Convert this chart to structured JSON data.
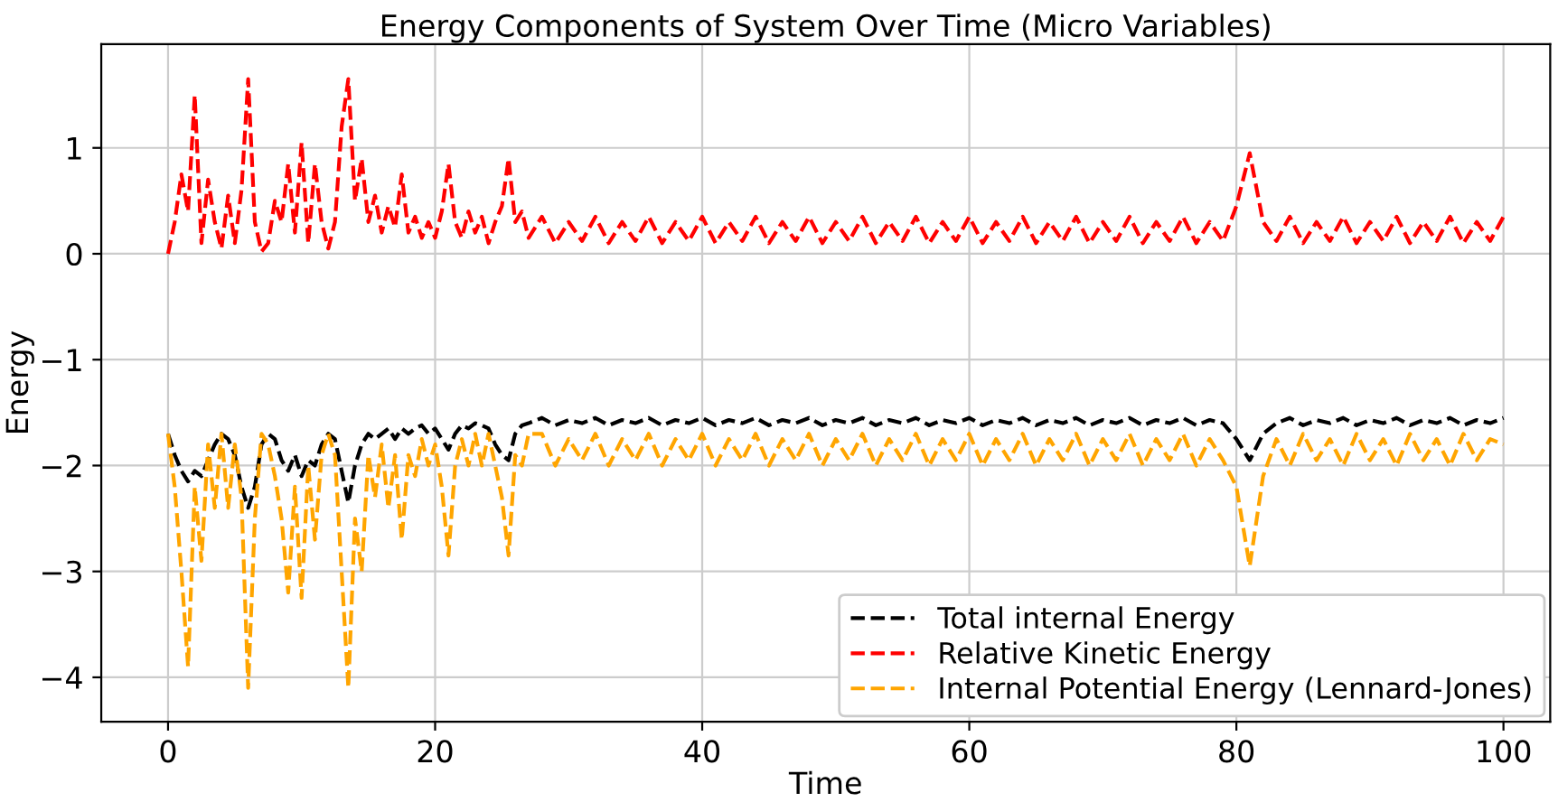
{
  "chart_data": {
    "type": "line",
    "title": "Energy Components of System Over Time (Micro Variables)",
    "xlabel": "Time",
    "ylabel": "Energy",
    "x": [
      0,
      0.5,
      1,
      1.5,
      2,
      2.5,
      3,
      3.5,
      4,
      4.5,
      5,
      5.5,
      6,
      6.5,
      7,
      7.5,
      8,
      8.5,
      9,
      9.5,
      10,
      10.5,
      11,
      11.5,
      12,
      12.5,
      13,
      13.5,
      14,
      14.5,
      15,
      15.5,
      16,
      16.5,
      17,
      17.5,
      18,
      18.5,
      19,
      19.5,
      20,
      20.5,
      21,
      21.5,
      22,
      22.5,
      23,
      23.5,
      24,
      24.5,
      25,
      25.5,
      26,
      26.5,
      27,
      28,
      29,
      30,
      31,
      32,
      33,
      34,
      35,
      36,
      37,
      38,
      39,
      40,
      41,
      42,
      43,
      44,
      45,
      46,
      47,
      48,
      49,
      50,
      51,
      52,
      53,
      54,
      55,
      56,
      57,
      58,
      59,
      60,
      61,
      62,
      63,
      64,
      65,
      66,
      67,
      68,
      69,
      70,
      71,
      72,
      73,
      74,
      75,
      76,
      77,
      78,
      79,
      80,
      81,
      82,
      83,
      84,
      85,
      86,
      87,
      88,
      89,
      90,
      91,
      92,
      93,
      94,
      95,
      96,
      97,
      98,
      99,
      100
    ],
    "series": [
      {
        "name": "Total internal Energy",
        "color": "#000000",
        "values": [
          -1.7,
          -1.9,
          -2.05,
          -2.15,
          -2.05,
          -2.1,
          -1.95,
          -1.8,
          -1.7,
          -1.75,
          -1.9,
          -2.2,
          -2.4,
          -2.2,
          -1.8,
          -1.7,
          -1.75,
          -1.95,
          -2.05,
          -1.9,
          -2.1,
          -1.95,
          -2.0,
          -1.8,
          -1.7,
          -1.75,
          -2.05,
          -2.35,
          -2.0,
          -1.8,
          -1.7,
          -1.75,
          -1.7,
          -1.65,
          -1.75,
          -1.65,
          -1.7,
          -1.65,
          -1.62,
          -1.7,
          -1.65,
          -1.75,
          -1.85,
          -1.7,
          -1.62,
          -1.65,
          -1.6,
          -1.62,
          -1.65,
          -1.8,
          -1.9,
          -1.95,
          -1.7,
          -1.62,
          -1.6,
          -1.55,
          -1.62,
          -1.57,
          -1.6,
          -1.55,
          -1.62,
          -1.57,
          -1.6,
          -1.55,
          -1.62,
          -1.57,
          -1.6,
          -1.55,
          -1.62,
          -1.57,
          -1.6,
          -1.55,
          -1.62,
          -1.57,
          -1.6,
          -1.55,
          -1.62,
          -1.57,
          -1.6,
          -1.55,
          -1.62,
          -1.57,
          -1.6,
          -1.55,
          -1.62,
          -1.57,
          -1.6,
          -1.55,
          -1.62,
          -1.57,
          -1.6,
          -1.55,
          -1.62,
          -1.57,
          -1.6,
          -1.55,
          -1.62,
          -1.57,
          -1.6,
          -1.55,
          -1.62,
          -1.57,
          -1.6,
          -1.55,
          -1.62,
          -1.57,
          -1.6,
          -1.75,
          -1.95,
          -1.7,
          -1.6,
          -1.55,
          -1.62,
          -1.57,
          -1.6,
          -1.55,
          -1.62,
          -1.57,
          -1.6,
          -1.55,
          -1.62,
          -1.57,
          -1.6,
          -1.55,
          -1.62,
          -1.57,
          -1.6,
          -1.55
        ]
      },
      {
        "name": "Relative Kinetic Energy",
        "color": "#ff0000",
        "values": [
          0,
          0.3,
          0.75,
          0.4,
          1.5,
          0.1,
          0.7,
          0.3,
          0.05,
          0.55,
          0.1,
          0.6,
          1.65,
          0.3,
          0.02,
          0.1,
          0.5,
          0.3,
          0.85,
          0.2,
          1.05,
          0.1,
          0.85,
          0.3,
          0.05,
          0.3,
          1.2,
          1.65,
          0.5,
          0.9,
          0.3,
          0.55,
          0.2,
          0.45,
          0.25,
          0.75,
          0.2,
          0.35,
          0.15,
          0.3,
          0.15,
          0.4,
          0.85,
          0.3,
          0.15,
          0.4,
          0.2,
          0.35,
          0.1,
          0.3,
          0.45,
          0.9,
          0.3,
          0.4,
          0.15,
          0.35,
          0.1,
          0.3,
          0.12,
          0.35,
          0.1,
          0.3,
          0.12,
          0.35,
          0.1,
          0.3,
          0.12,
          0.35,
          0.1,
          0.3,
          0.12,
          0.35,
          0.1,
          0.3,
          0.12,
          0.35,
          0.1,
          0.3,
          0.12,
          0.35,
          0.1,
          0.3,
          0.12,
          0.35,
          0.1,
          0.3,
          0.12,
          0.35,
          0.1,
          0.3,
          0.12,
          0.35,
          0.1,
          0.3,
          0.12,
          0.35,
          0.1,
          0.3,
          0.12,
          0.35,
          0.1,
          0.3,
          0.12,
          0.35,
          0.1,
          0.3,
          0.12,
          0.45,
          0.95,
          0.3,
          0.12,
          0.35,
          0.1,
          0.3,
          0.12,
          0.35,
          0.1,
          0.3,
          0.12,
          0.35,
          0.1,
          0.3,
          0.12,
          0.35,
          0.1,
          0.3,
          0.12,
          0.35
        ]
      },
      {
        "name": "Internal Potential Energy (Lennard-Jones)",
        "color": "#ffa500",
        "values": [
          -1.7,
          -2.2,
          -3.0,
          -3.9,
          -2.2,
          -2.9,
          -1.8,
          -2.4,
          -1.7,
          -2.4,
          -1.8,
          -2.3,
          -4.1,
          -2.5,
          -1.7,
          -1.8,
          -2.1,
          -2.5,
          -3.2,
          -2.2,
          -3.25,
          -2.0,
          -2.7,
          -1.9,
          -1.7,
          -1.9,
          -3.0,
          -4.1,
          -2.5,
          -3.0,
          -1.9,
          -2.3,
          -1.8,
          -2.4,
          -1.9,
          -2.7,
          -1.9,
          -2.1,
          -1.75,
          -2.0,
          -1.8,
          -2.2,
          -2.85,
          -2.0,
          -1.75,
          -2.0,
          -1.7,
          -2.0,
          -1.7,
          -2.0,
          -2.3,
          -2.85,
          -1.9,
          -2.0,
          -1.7,
          -1.7,
          -2.0,
          -1.75,
          -1.95,
          -1.7,
          -2.0,
          -1.75,
          -1.95,
          -1.7,
          -2.0,
          -1.75,
          -1.95,
          -1.7,
          -2.0,
          -1.75,
          -1.95,
          -1.7,
          -2.0,
          -1.75,
          -1.95,
          -1.7,
          -2.0,
          -1.75,
          -1.95,
          -1.7,
          -2.0,
          -1.75,
          -1.95,
          -1.7,
          -2.0,
          -1.75,
          -1.95,
          -1.7,
          -2.0,
          -1.75,
          -1.95,
          -1.7,
          -2.0,
          -1.75,
          -1.95,
          -1.7,
          -2.0,
          -1.75,
          -1.95,
          -1.7,
          -2.0,
          -1.75,
          -1.95,
          -1.7,
          -2.0,
          -1.75,
          -1.95,
          -2.2,
          -2.95,
          -2.1,
          -1.75,
          -2.0,
          -1.7,
          -1.95,
          -1.75,
          -2.0,
          -1.7,
          -1.95,
          -1.75,
          -2.0,
          -1.7,
          -1.95,
          -1.75,
          -2.0,
          -1.7,
          -1.95,
          -1.75,
          -1.8
        ]
      }
    ],
    "xlim": [
      -5,
      103.5
    ],
    "ylim": [
      -4.42,
      1.98
    ],
    "xticks": [
      0,
      20,
      40,
      60,
      80,
      100
    ],
    "yticks": [
      -4,
      -3,
      -2,
      -1,
      0,
      1
    ],
    "grid": true,
    "legend": "bottom right",
    "line_style": "dashed"
  }
}
